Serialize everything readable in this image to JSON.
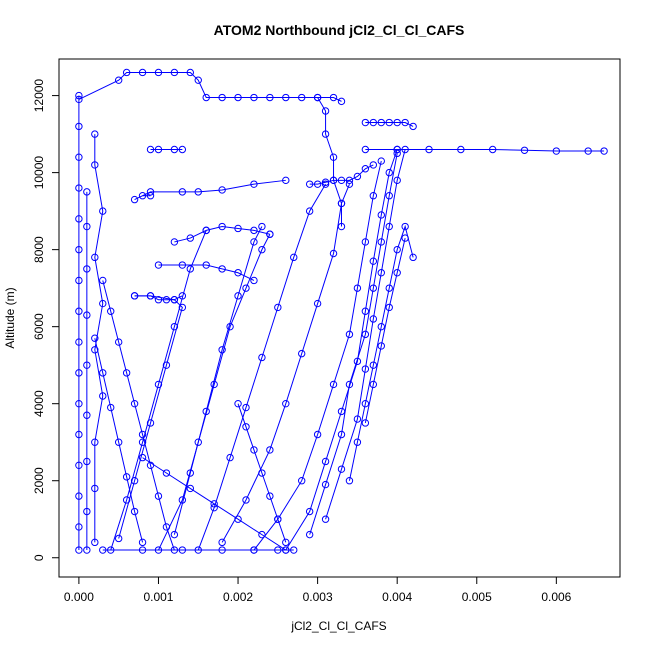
{
  "chart_data": {
    "type": "scatter",
    "title": "ATOM2 Northbound jCl2_Cl_Cl_CAFS",
    "xlabel": "jCl2_Cl_Cl_CAFS",
    "ylabel": "Altitude (m)",
    "xlim": [
      -0.00025,
      0.0068
    ],
    "ylim": [
      -500,
      12950
    ],
    "xticks": [
      "0.000",
      "0.001",
      "0.002",
      "0.003",
      "0.004",
      "0.005",
      "0.006"
    ],
    "yticks": [
      "0",
      "2000",
      "4000",
      "6000",
      "8000",
      "10000",
      "12000"
    ],
    "color": "#0000ff",
    "marker": "open-circle",
    "grid": false,
    "series": [
      {
        "points": [
          [
            0.0,
            200
          ],
          [
            0.0,
            800
          ],
          [
            0.0,
            1600
          ],
          [
            0.0,
            2400
          ],
          [
            0.0,
            3200
          ],
          [
            0.0,
            4000
          ],
          [
            0.0,
            4800
          ],
          [
            0.0,
            5600
          ],
          [
            0.0,
            6400
          ],
          [
            0.0,
            7200
          ],
          [
            0.0,
            8000
          ],
          [
            0.0,
            8800
          ],
          [
            0.0,
            9600
          ],
          [
            0.0,
            10400
          ],
          [
            0.0,
            11200
          ],
          [
            0.0,
            12000
          ]
        ]
      },
      {
        "points": [
          [
            0.0001,
            200
          ],
          [
            0.0001,
            1200
          ],
          [
            0.0001,
            2500
          ],
          [
            0.0001,
            3700
          ],
          [
            0.0001,
            5000
          ],
          [
            0.0001,
            6300
          ],
          [
            0.0001,
            7500
          ],
          [
            0.0001,
            8600
          ],
          [
            0.0001,
            9500
          ]
        ]
      },
      {
        "points": [
          [
            0.0002,
            400
          ],
          [
            0.0002,
            1800
          ],
          [
            0.0002,
            3000
          ],
          [
            0.0003,
            4200
          ],
          [
            0.0002,
            5400
          ],
          [
            0.0003,
            6600
          ],
          [
            0.0002,
            7800
          ],
          [
            0.0003,
            9000
          ],
          [
            0.0002,
            10200
          ],
          [
            0.0002,
            11000
          ]
        ]
      },
      {
        "points": [
          [
            0.0003,
            200
          ],
          [
            0.0008,
            200
          ],
          [
            0.0013,
            200
          ],
          [
            0.0018,
            200
          ],
          [
            0.0022,
            200
          ],
          [
            0.0025,
            200
          ],
          [
            0.0027,
            200
          ]
        ]
      },
      {
        "points": [
          [
            0.0004,
            200
          ],
          [
            0.0006,
            1500
          ],
          [
            0.0008,
            3000
          ],
          [
            0.001,
            4500
          ],
          [
            0.0012,
            6000
          ],
          [
            0.0014,
            7500
          ],
          [
            0.0016,
            8500
          ]
        ]
      },
      {
        "points": [
          [
            0.0005,
            500
          ],
          [
            0.0007,
            2000
          ],
          [
            0.0009,
            3500
          ],
          [
            0.0011,
            5000
          ],
          [
            0.0013,
            6500
          ],
          [
            0.0012,
            6700
          ],
          [
            0.0009,
            6800
          ],
          [
            0.0007,
            6800
          ]
        ]
      },
      {
        "points": [
          [
            0.001,
            200
          ],
          [
            0.0013,
            1500
          ],
          [
            0.0015,
            3000
          ],
          [
            0.0017,
            4500
          ],
          [
            0.0019,
            6000
          ],
          [
            0.0021,
            7000
          ],
          [
            0.0023,
            8000
          ],
          [
            0.0024,
            8400
          ]
        ]
      },
      {
        "points": [
          [
            0.0012,
            600
          ],
          [
            0.0014,
            2200
          ],
          [
            0.0016,
            3800
          ],
          [
            0.0018,
            5400
          ],
          [
            0.002,
            6800
          ],
          [
            0.0022,
            8200
          ],
          [
            0.0023,
            8600
          ]
        ]
      },
      {
        "points": [
          [
            0.0015,
            200
          ],
          [
            0.0017,
            1300
          ],
          [
            0.0019,
            2600
          ],
          [
            0.0021,
            3900
          ],
          [
            0.0023,
            5200
          ],
          [
            0.0025,
            6500
          ],
          [
            0.0027,
            7800
          ],
          [
            0.0029,
            9000
          ],
          [
            0.0031,
            9700
          ]
        ]
      },
      {
        "points": [
          [
            0.0018,
            400
          ],
          [
            0.0021,
            1500
          ],
          [
            0.0024,
            2800
          ],
          [
            0.0026,
            4000
          ],
          [
            0.0028,
            5300
          ],
          [
            0.003,
            6600
          ],
          [
            0.0032,
            7900
          ],
          [
            0.0033,
            9200
          ],
          [
            0.0034,
            9700
          ]
        ]
      },
      {
        "points": [
          [
            0.0022,
            200
          ],
          [
            0.0025,
            1000
          ],
          [
            0.0028,
            2000
          ],
          [
            0.003,
            3200
          ],
          [
            0.0032,
            4500
          ],
          [
            0.0034,
            5800
          ],
          [
            0.0035,
            7000
          ],
          [
            0.0036,
            8200
          ],
          [
            0.0037,
            9400
          ],
          [
            0.0038,
            10300
          ]
        ]
      },
      {
        "points": [
          [
            0.0026,
            200
          ],
          [
            0.0029,
            1200
          ],
          [
            0.0031,
            2500
          ],
          [
            0.0033,
            3800
          ],
          [
            0.0035,
            5100
          ],
          [
            0.0036,
            6400
          ],
          [
            0.0037,
            7700
          ],
          [
            0.0038,
            8900
          ],
          [
            0.0039,
            10000
          ],
          [
            0.004,
            10600
          ]
        ]
      },
      {
        "points": [
          [
            0.0029,
            600
          ],
          [
            0.0031,
            1900
          ],
          [
            0.0033,
            3200
          ],
          [
            0.0034,
            4500
          ],
          [
            0.0036,
            5800
          ],
          [
            0.0037,
            7000
          ],
          [
            0.0038,
            8200
          ],
          [
            0.0039,
            9400
          ],
          [
            0.004,
            10500
          ]
        ]
      },
      {
        "points": [
          [
            0.0031,
            1000
          ],
          [
            0.0033,
            2300
          ],
          [
            0.0035,
            3600
          ],
          [
            0.0036,
            4900
          ],
          [
            0.0037,
            6200
          ],
          [
            0.0038,
            7400
          ],
          [
            0.0039,
            8600
          ],
          [
            0.004,
            9800
          ],
          [
            0.0041,
            10600
          ]
        ]
      },
      {
        "points": [
          [
            0.0034,
            2000
          ],
          [
            0.0035,
            3000
          ],
          [
            0.0036,
            4000
          ],
          [
            0.0037,
            5000
          ],
          [
            0.0038,
            6000
          ],
          [
            0.0039,
            7000
          ],
          [
            0.004,
            8000
          ],
          [
            0.0041,
            8600
          ],
          [
            0.0042,
            7800
          ]
        ]
      },
      {
        "points": [
          [
            0.0036,
            3500
          ],
          [
            0.0037,
            4500
          ],
          [
            0.0038,
            5500
          ],
          [
            0.0039,
            6500
          ],
          [
            0.004,
            7400
          ],
          [
            0.0041,
            8300
          ]
        ]
      },
      {
        "points": [
          [
            0.0,
            11900
          ],
          [
            0.0005,
            12400
          ],
          [
            0.0006,
            12600
          ],
          [
            0.0008,
            12600
          ],
          [
            0.001,
            12600
          ],
          [
            0.0012,
            12600
          ],
          [
            0.0014,
            12600
          ],
          [
            0.0015,
            12400
          ],
          [
            0.0016,
            11950
          ],
          [
            0.0018,
            11950
          ],
          [
            0.002,
            11950
          ],
          [
            0.0022,
            11950
          ],
          [
            0.0024,
            11950
          ],
          [
            0.0026,
            11950
          ],
          [
            0.0028,
            11950
          ],
          [
            0.003,
            11950
          ],
          [
            0.0032,
            11950
          ],
          [
            0.0033,
            11850
          ]
        ]
      },
      {
        "points": [
          [
            0.0036,
            11300
          ],
          [
            0.0037,
            11300
          ],
          [
            0.0038,
            11300
          ],
          [
            0.0039,
            11300
          ],
          [
            0.004,
            11300
          ],
          [
            0.0041,
            11300
          ],
          [
            0.0042,
            11200
          ]
        ]
      },
      {
        "points": [
          [
            0.0036,
            10600
          ],
          [
            0.004,
            10600
          ],
          [
            0.0044,
            10600
          ],
          [
            0.0048,
            10600
          ],
          [
            0.0052,
            10600
          ],
          [
            0.0056,
            10580
          ],
          [
            0.006,
            10560
          ],
          [
            0.0064,
            10560
          ],
          [
            0.0066,
            10560
          ]
        ]
      },
      {
        "points": [
          [
            0.0029,
            9700
          ],
          [
            0.003,
            9700
          ],
          [
            0.0031,
            9750
          ],
          [
            0.0032,
            9800
          ],
          [
            0.0033,
            9800
          ],
          [
            0.0034,
            9800
          ],
          [
            0.0035,
            9900
          ],
          [
            0.0036,
            10100
          ],
          [
            0.0037,
            10200
          ]
        ]
      },
      {
        "points": [
          [
            0.0009,
            9400
          ],
          [
            0.0008,
            9400
          ],
          [
            0.0007,
            9300
          ],
          [
            0.0009,
            9500
          ],
          [
            0.0013,
            9500
          ],
          [
            0.0015,
            9500
          ],
          [
            0.0018,
            9550
          ],
          [
            0.0022,
            9700
          ],
          [
            0.0026,
            9800
          ]
        ]
      },
      {
        "points": [
          [
            0.0009,
            10600
          ],
          [
            0.001,
            10600
          ],
          [
            0.0012,
            10600
          ],
          [
            0.0013,
            10600
          ]
        ]
      },
      {
        "points": [
          [
            0.001,
            7600
          ],
          [
            0.0013,
            7600
          ],
          [
            0.0016,
            7600
          ],
          [
            0.0018,
            7500
          ],
          [
            0.002,
            7400
          ],
          [
            0.0022,
            7200
          ]
        ]
      },
      {
        "points": [
          [
            0.0007,
            6800
          ],
          [
            0.0009,
            6800
          ],
          [
            0.001,
            6700
          ],
          [
            0.0011,
            6700
          ],
          [
            0.0012,
            6700
          ],
          [
            0.0013,
            6800
          ]
        ]
      },
      {
        "points": [
          [
            0.0012,
            8200
          ],
          [
            0.0014,
            8300
          ],
          [
            0.0016,
            8500
          ],
          [
            0.0018,
            8600
          ],
          [
            0.002,
            8550
          ],
          [
            0.0022,
            8500
          ],
          [
            0.0024,
            8400
          ]
        ]
      },
      {
        "points": [
          [
            0.0003,
            7200
          ],
          [
            0.0004,
            6400
          ],
          [
            0.0005,
            5600
          ],
          [
            0.0006,
            4800
          ],
          [
            0.0007,
            4000
          ],
          [
            0.0008,
            3200
          ],
          [
            0.0009,
            2400
          ],
          [
            0.001,
            1600
          ],
          [
            0.0011,
            800
          ],
          [
            0.0012,
            200
          ]
        ]
      },
      {
        "points": [
          [
            0.0002,
            5700
          ],
          [
            0.0003,
            4800
          ],
          [
            0.0004,
            3900
          ],
          [
            0.0005,
            3000
          ],
          [
            0.0006,
            2100
          ],
          [
            0.0007,
            1200
          ],
          [
            0.0008,
            400
          ]
        ]
      },
      {
        "points": [
          [
            0.002,
            4000
          ],
          [
            0.0021,
            3400
          ],
          [
            0.0022,
            2800
          ],
          [
            0.0023,
            2200
          ],
          [
            0.0024,
            1600
          ],
          [
            0.0025,
            1000
          ],
          [
            0.0026,
            400
          ]
        ]
      },
      {
        "points": [
          [
            0.0008,
            2600
          ],
          [
            0.0011,
            2200
          ],
          [
            0.0014,
            1800
          ],
          [
            0.0017,
            1400
          ],
          [
            0.002,
            1000
          ],
          [
            0.0023,
            600
          ],
          [
            0.0026,
            200
          ]
        ]
      },
      {
        "points": [
          [
            0.003,
            11950
          ],
          [
            0.0031,
            11600
          ],
          [
            0.0031,
            11000
          ],
          [
            0.0032,
            10400
          ],
          [
            0.0032,
            9800
          ],
          [
            0.0033,
            9200
          ],
          [
            0.0033,
            8600
          ]
        ]
      }
    ]
  }
}
